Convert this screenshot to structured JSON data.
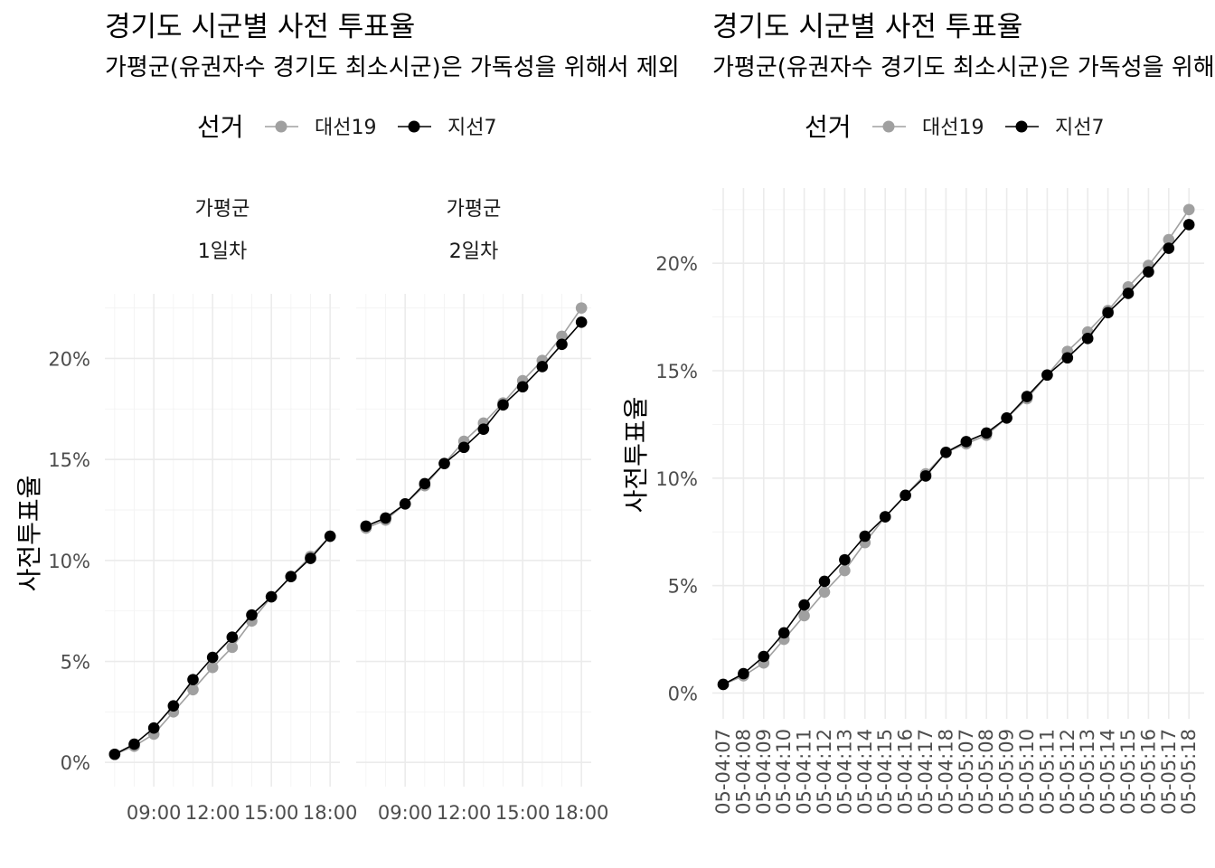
{
  "chart_data": [
    {
      "type": "line",
      "title": "경기도 시군별 사전 투표율",
      "subtitle": "가평군(유권자수 경기도 최소시군)은 가독성을 위해서 제외",
      "ylabel": "사전투표율",
      "legend": {
        "title": "선거",
        "position": "top",
        "entries": [
          "대선19",
          "지선7"
        ]
      },
      "colors": {
        "대선19": "#a0a0a0",
        "지선7": "#000000"
      },
      "ylim": [
        -0.012,
        0.232
      ],
      "y_ticks": [
        0,
        0.05,
        0.1,
        0.15,
        0.2
      ],
      "y_tick_labels": [
        "0%",
        "5%",
        "10%",
        "15%",
        "20%"
      ],
      "x_tick_labels": [
        "09:00",
        "12:00",
        "15:00",
        "18:00"
      ],
      "x_ticks": [
        9,
        12,
        15,
        18
      ],
      "xlim": [
        6.5,
        18.5
      ],
      "facets": [
        {
          "strip": [
            "가평군",
            "1일차"
          ],
          "x": [
            7,
            8,
            9,
            10,
            11,
            12,
            13,
            14,
            15,
            16,
            17,
            18
          ],
          "series": [
            {
              "name": "대선19",
              "values": [
                0.004,
                0.008,
                0.014,
                0.025,
                0.036,
                0.047,
                0.057,
                0.07,
                0.082,
                0.092,
                0.102,
                0.112
              ]
            },
            {
              "name": "지선7",
              "values": [
                0.004,
                0.009,
                0.017,
                0.028,
                0.041,
                0.052,
                0.062,
                0.073,
                0.082,
                0.092,
                0.101,
                0.112
              ]
            }
          ]
        },
        {
          "strip": [
            "가평군",
            "2일차"
          ],
          "x": [
            7,
            8,
            9,
            10,
            11,
            12,
            13,
            14,
            15,
            16,
            17,
            18
          ],
          "series": [
            {
              "name": "대선19",
              "values": [
                0.116,
                0.12,
                0.128,
                0.137,
                0.148,
                0.159,
                0.168,
                0.178,
                0.189,
                0.199,
                0.211,
                0.225
              ]
            },
            {
              "name": "지선7",
              "values": [
                0.117,
                0.121,
                0.128,
                0.138,
                0.148,
                0.156,
                0.165,
                0.177,
                0.186,
                0.196,
                0.207,
                0.218
              ]
            }
          ]
        }
      ]
    },
    {
      "type": "line",
      "title": "경기도 시군별 사전 투표율",
      "subtitle": "가평군(유권자수 경기도 최소시군)은 가독성을 위해서 제외",
      "ylabel": "사전투표율",
      "legend": {
        "title": "선거",
        "position": "top",
        "entries": [
          "대선19",
          "지선7"
        ]
      },
      "colors": {
        "대선19": "#a0a0a0",
        "지선7": "#000000"
      },
      "ylim": [
        -0.012,
        0.235
      ],
      "y_ticks": [
        0,
        0.05,
        0.1,
        0.15,
        0.2
      ],
      "y_tick_labels": [
        "0%",
        "5%",
        "10%",
        "15%",
        "20%"
      ],
      "categories": [
        "05-04:07",
        "05-04:08",
        "05-04:09",
        "05-04:10",
        "05-04:11",
        "05-04:12",
        "05-04:13",
        "05-04:14",
        "05-04:15",
        "05-04:16",
        "05-04:17",
        "05-04:18",
        "05-05:07",
        "05-05:08",
        "05-05:09",
        "05-05:10",
        "05-05:11",
        "05-05:12",
        "05-05:13",
        "05-05:14",
        "05-05:15",
        "05-05:16",
        "05-05:17",
        "05-05:18"
      ],
      "series": [
        {
          "name": "대선19",
          "values": [
            0.004,
            0.008,
            0.014,
            0.025,
            0.036,
            0.047,
            0.057,
            0.07,
            0.082,
            0.092,
            0.102,
            0.112,
            0.116,
            0.12,
            0.128,
            0.137,
            0.148,
            0.159,
            0.168,
            0.178,
            0.189,
            0.199,
            0.211,
            0.225
          ]
        },
        {
          "name": "지선7",
          "values": [
            0.004,
            0.009,
            0.017,
            0.028,
            0.041,
            0.052,
            0.062,
            0.073,
            0.082,
            0.092,
            0.101,
            0.112,
            0.117,
            0.121,
            0.128,
            0.138,
            0.148,
            0.156,
            0.165,
            0.177,
            0.186,
            0.196,
            0.207,
            0.218
          ]
        }
      ]
    }
  ]
}
